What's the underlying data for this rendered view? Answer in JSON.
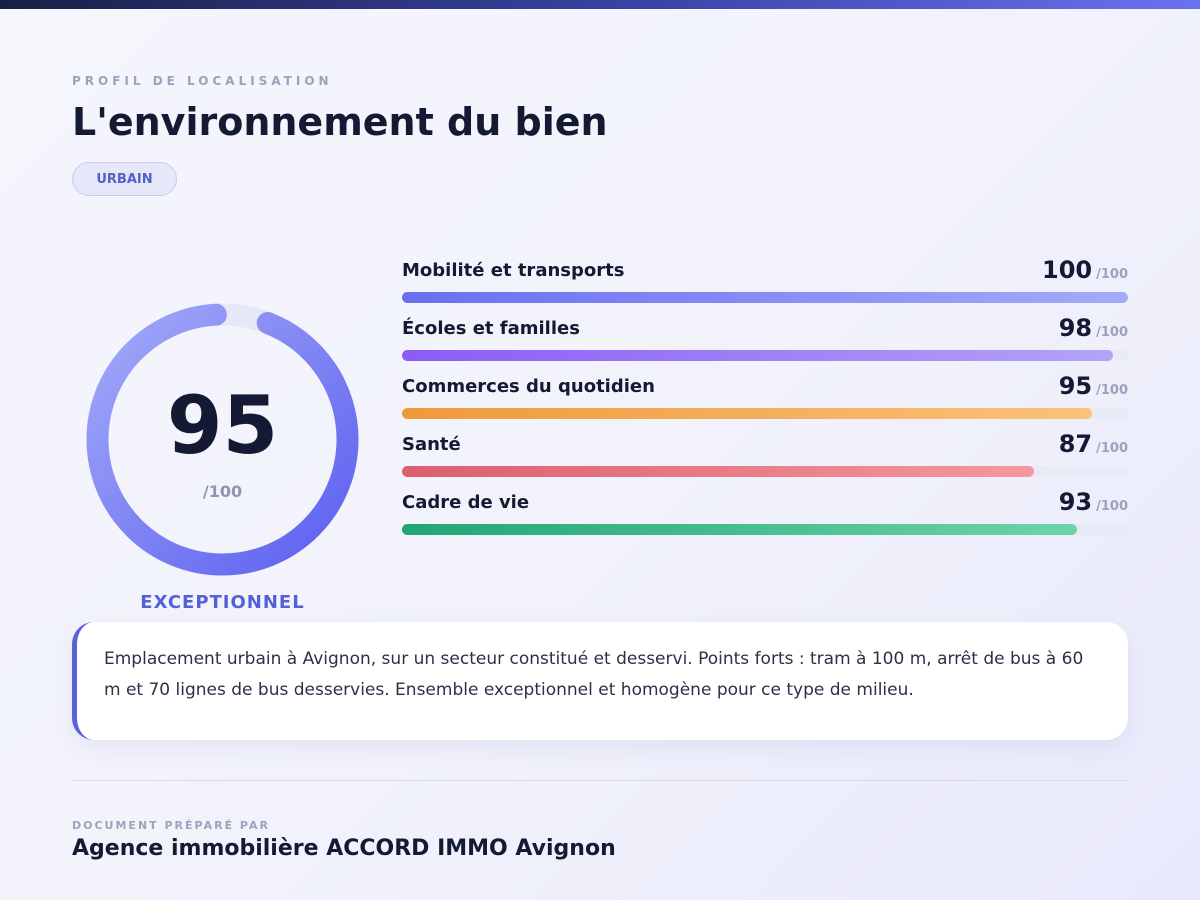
{
  "header": {
    "eyebrow": "PROFIL DE LOCALISATION",
    "title": "L'environnement du bien",
    "badge": "URBAIN"
  },
  "overall": {
    "score": 95,
    "score_text": "95",
    "max_text": "/100",
    "rating": "EXCEPTIONNEL",
    "colors": [
      "#5b5ff0",
      "#a3aaf8"
    ]
  },
  "metrics": [
    {
      "label": "Mobilité et transports",
      "value": 100,
      "value_text": "100",
      "max_text": "/100",
      "colors": [
        "#6a6ff2",
        "#a4abf8"
      ]
    },
    {
      "label": "Écoles et familles",
      "value": 98,
      "value_text": "98",
      "max_text": "/100",
      "colors": [
        "#8b5cf6",
        "#b3a3f9"
      ]
    },
    {
      "label": "Commerces du quotidien",
      "value": 95,
      "value_text": "95",
      "max_text": "/100",
      "colors": [
        "#ee9a3a",
        "#fbc27a"
      ]
    },
    {
      "label": "Santé",
      "value": 87,
      "value_text": "87",
      "max_text": "/100",
      "colors": [
        "#dc5f6e",
        "#f5979f"
      ]
    },
    {
      "label": "Cadre de vie",
      "value": 93,
      "value_text": "93",
      "max_text": "/100",
      "colors": [
        "#22a675",
        "#6dd4a9"
      ]
    }
  ],
  "description": "Emplacement urbain à Avignon, sur un secteur constitué et desservi. Points forts : tram à 100 m, arrêt de bus à 60 m et 70 lignes de bus desservies. Ensemble exceptionnel et homogène pour ce type de milieu.",
  "footer": {
    "label": "DOCUMENT PRÉPARÉ PAR",
    "agency": "Agence immobilière ACCORD IMMO Avignon"
  }
}
